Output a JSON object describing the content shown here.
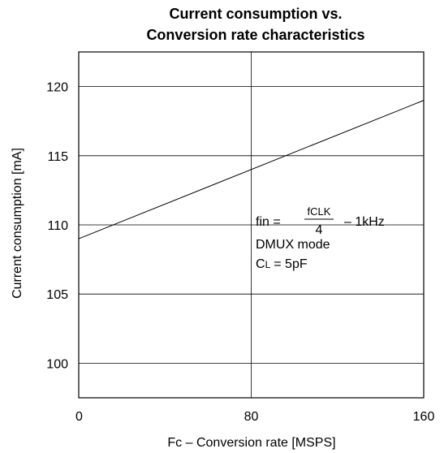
{
  "chart_data": {
    "type": "line",
    "title_lines": [
      "Current consumption vs.",
      "Conversion rate characteristics"
    ],
    "xlabel": "Fc – Conversion rate  [MSPS]",
    "ylabel": "Current consumption [mA]",
    "xlim": [
      0,
      160
    ],
    "ylim": [
      97.5,
      122.5
    ],
    "x_ticks": [
      0,
      80,
      160
    ],
    "y_ticks": [
      100,
      105,
      110,
      115,
      120
    ],
    "grid": true,
    "series": [
      {
        "x": [
          0,
          160
        ],
        "y": [
          109,
          119
        ]
      }
    ],
    "annotation": {
      "fin_prefix": "fin =",
      "fraction_numerator": "fCLK",
      "fraction_denominator": "4",
      "fin_suffix": "– 1kHz",
      "mode": "DMUX mode",
      "cl_base": "C",
      "cl_sub": "L",
      "cl_value": "= 5pF"
    }
  }
}
